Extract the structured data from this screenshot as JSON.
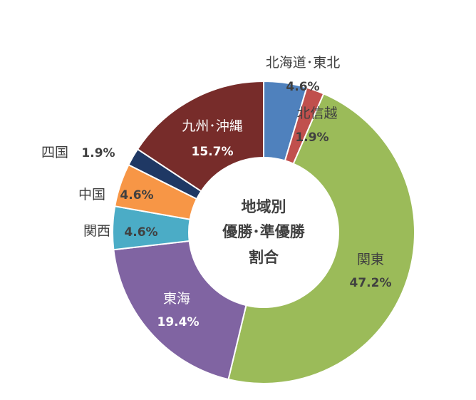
{
  "chart_data": {
    "type": "pie",
    "variant": "donut",
    "title": "",
    "center_label": [
      "地域別",
      "優勝･準優勝",
      "割合"
    ],
    "slices": [
      {
        "name": "北海道･東北",
        "value": 4.6,
        "label": "4.6%",
        "color": "#4f81bd"
      },
      {
        "name": "北信越",
        "value": 1.9,
        "label": "1.9%",
        "color": "#c0504d"
      },
      {
        "name": "関東",
        "value": 47.2,
        "label": "47.2%",
        "color": "#9bbb59"
      },
      {
        "name": "東海",
        "value": 19.4,
        "label": "19.4%",
        "color": "#8064a2"
      },
      {
        "name": "関西",
        "value": 4.6,
        "label": "4.6%",
        "color": "#4bacc6"
      },
      {
        "name": "中国",
        "value": 4.6,
        "label": "4.6%",
        "color": "#f79646"
      },
      {
        "name": "四国",
        "value": 1.9,
        "label": "1.9%",
        "color": "#1f3864"
      },
      {
        "name": "九州･沖縄",
        "value": 15.7,
        "label": "15.7%",
        "color": "#772c2a"
      }
    ],
    "legend": "none"
  }
}
